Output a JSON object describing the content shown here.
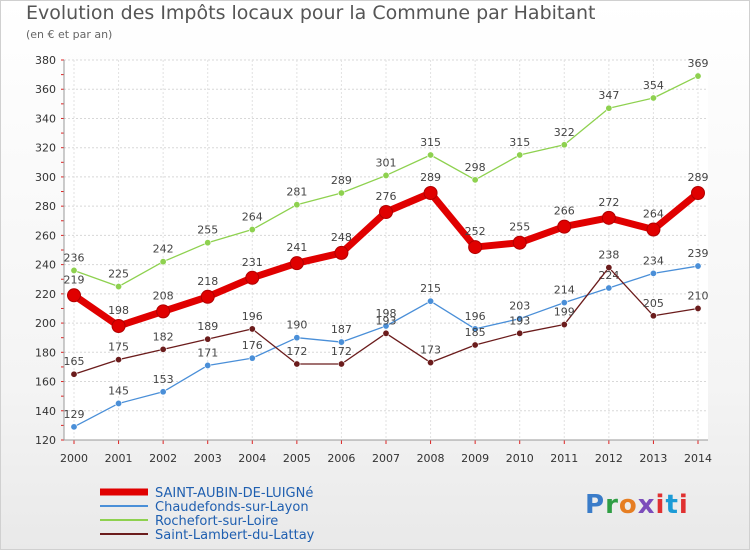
{
  "title": "Evolution des Impôts locaux pour la Commune par Habitant",
  "subtitle": "(en € et par an)",
  "logo": "Proxiti",
  "chart_data": {
    "type": "line",
    "title": "Evolution des Impôts locaux pour la Commune par Habitant",
    "subtitle": "(en € et par an)",
    "x": [
      "2000",
      "2001",
      "2002",
      "2003",
      "2004",
      "2005",
      "2006",
      "2007",
      "2008",
      "2009",
      "2010",
      "2011",
      "2012",
      "2013",
      "2014"
    ],
    "ylim": [
      120,
      380
    ],
    "yticks": [
      120,
      140,
      160,
      180,
      200,
      220,
      240,
      260,
      280,
      300,
      320,
      340,
      360,
      380
    ],
    "grid": true,
    "legend_position": "bottom-left",
    "series": [
      {
        "name": "SAINT-AUBIN-DE-LUIGNé",
        "color": "#e00000",
        "values": [
          219,
          198,
          208,
          218,
          231,
          241,
          248,
          276,
          289,
          252,
          255,
          266,
          272,
          264,
          289
        ]
      },
      {
        "name": "Chaudefonds-sur-Layon",
        "color": "#4a8fd8",
        "values": [
          129,
          145,
          153,
          171,
          176,
          190,
          187,
          198,
          215,
          196,
          203,
          214,
          224,
          234,
          239
        ]
      },
      {
        "name": "Rochefort-sur-Loire",
        "color": "#8ed14f",
        "values": [
          236,
          225,
          242,
          255,
          264,
          281,
          289,
          301,
          315,
          298,
          315,
          322,
          347,
          354,
          369
        ]
      },
      {
        "name": "Saint-Lambert-du-Lattay",
        "color": "#6b1c1c",
        "values": [
          165,
          175,
          182,
          189,
          196,
          172,
          172,
          193,
          173,
          185,
          193,
          199,
          238,
          205,
          210
        ]
      }
    ]
  }
}
